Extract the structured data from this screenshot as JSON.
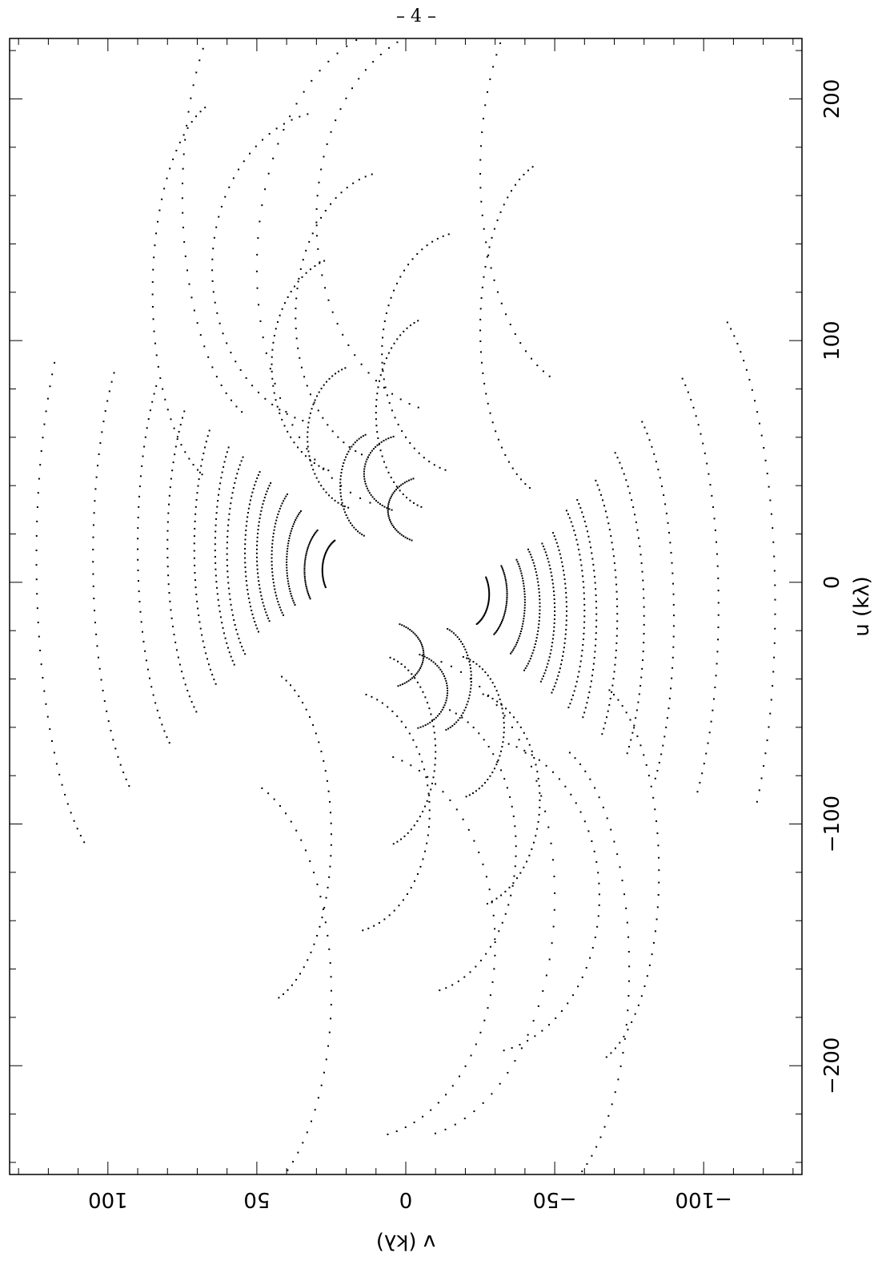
{
  "page": {
    "number": "– 4 –"
  },
  "chart_data": {
    "type": "scatter",
    "title": "",
    "xlabel": "u (kλ)",
    "ylabel": "v (kλ)",
    "orientation": "rotated 90 degrees clockwise",
    "xlim": [
      -245,
      225
    ],
    "ylim": [
      -133,
      133
    ],
    "xticks": [
      -200,
      -100,
      0,
      100,
      200
    ],
    "xtick_labels": [
      "−200",
      "−100",
      "0",
      "100",
      "200"
    ],
    "yticks": [
      100,
      50,
      0,
      -50,
      -100
    ],
    "ytick_labels": [
      "100",
      "50",
      "0",
      "−50",
      "−100"
    ],
    "grid": false,
    "legend": "none",
    "marker_color": "#000000",
    "series": [
      {
        "description": "uv-coverage arcs traced by interferometer baselines (point-symmetric about the origin)",
        "points_per_track": 40,
        "tracks": [
          {
            "u0": 5,
            "v0": 20,
            "a": 14,
            "b": 8,
            "t0": 0.5,
            "t1": 2.1
          },
          {
            "u0": 5,
            "v0": 24,
            "a": 20,
            "b": 10,
            "t0": 0.6,
            "t1": 2.2
          },
          {
            "u0": 8,
            "v0": 29,
            "a": 26,
            "b": 11,
            "t0": 0.6,
            "t1": 2.3
          },
          {
            "u0": 10,
            "v0": 33,
            "a": 32,
            "b": 12,
            "t0": 0.6,
            "t1": 2.4
          },
          {
            "u0": 12,
            "v0": 37,
            "a": 38,
            "b": 13,
            "t0": 0.7,
            "t1": 2.4
          },
          {
            "u0": 12,
            "v0": 40,
            "a": 44,
            "b": 14,
            "t0": 0.7,
            "t1": 2.4
          },
          {
            "u0": 12,
            "v0": 45,
            "a": 52,
            "b": 15,
            "t0": 0.7,
            "t1": 2.5
          },
          {
            "u0": 14,
            "v0": 48,
            "a": 60,
            "b": 16,
            "t0": 0.8,
            "t1": 2.5
          },
          {
            "u0": 14,
            "v0": 53,
            "a": 70,
            "b": 18,
            "t0": 0.8,
            "t1": 2.5
          },
          {
            "u0": 15,
            "v0": 60,
            "a": 80,
            "b": 20,
            "t0": 0.8,
            "t1": 2.6
          },
          {
            "u0": 15,
            "v0": 68,
            "a": 95,
            "b": 22,
            "t0": 0.8,
            "t1": 2.6
          },
          {
            "u0": 10,
            "v0": 80,
            "a": 110,
            "b": 25,
            "t0": 0.8,
            "t1": 2.6
          },
          {
            "u0": 10,
            "v0": 96,
            "a": 130,
            "b": 28,
            "t0": 0.9,
            "t1": 2.7
          },
          {
            "u0": 40,
            "v0": 10,
            "a": 22,
            "b": 12,
            "t0": 0.3,
            "t1": 2.8
          },
          {
            "u0": 45,
            "v0": 0,
            "a": 16,
            "b": 14,
            "t0": 0.3,
            "t1": 2.8
          },
          {
            "u0": 30,
            "v0": -8,
            "a": 14,
            "b": 14,
            "t0": 0.4,
            "t1": 2.7
          },
          {
            "u0": 60,
            "v0": 15,
            "a": 30,
            "b": 18,
            "t0": 0.3,
            "t1": 2.9
          },
          {
            "u0": 70,
            "v0": -10,
            "a": 40,
            "b": 20,
            "t0": 0.3,
            "t1": 2.9
          },
          {
            "u0": 90,
            "v0": 20,
            "a": 45,
            "b": 25,
            "t0": 0.3,
            "t1": 2.9
          },
          {
            "u0": 95,
            "v0": -20,
            "a": 50,
            "b": 28,
            "t0": 0.2,
            "t1": 2.9
          },
          {
            "u0": 110,
            "v0": 5,
            "a": 60,
            "b": 32,
            "t0": 0.2,
            "t1": 2.9
          },
          {
            "u0": 130,
            "v0": 25,
            "a": 65,
            "b": 40,
            "t0": 0.2,
            "t1": 2.9
          },
          {
            "u0": 150,
            "v0": -15,
            "a": 80,
            "b": 45,
            "t0": 0.2,
            "t1": 2.9
          },
          {
            "u0": 160,
            "v0": 45,
            "a": 95,
            "b": 30,
            "t0": 0.3,
            "t1": 2.8
          },
          {
            "u0": 170,
            "v0": -60,
            "a": 90,
            "b": 35,
            "t0": 0.3,
            "t1": 2.8
          },
          {
            "u0": 120,
            "v0": 60,
            "a": 80,
            "b": 25,
            "t0": 0.3,
            "t1": 2.8
          },
          {
            "u0": 105,
            "v0": -50,
            "a": 70,
            "b": 25,
            "t0": 0.3,
            "t1": 2.8
          },
          {
            "u0": 130,
            "v0": 0,
            "a": 100,
            "b": 50,
            "t0": 0.2,
            "t1": 2.9
          }
        ]
      }
    ]
  }
}
